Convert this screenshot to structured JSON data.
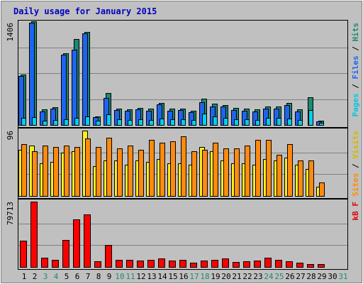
{
  "title": "Daily usage for January 2015",
  "chart_data": [
    {
      "type": "bar",
      "ylabel_parts": [
        {
          "text": "Pages",
          "color": "#00c8e0"
        },
        {
          "text": " / ",
          "color": "#000000"
        },
        {
          "text": "Files",
          "color": "#1e64f0"
        },
        {
          "text": " / ",
          "color": "#000000"
        },
        {
          "text": "Hits",
          "color": "#1e8a70"
        }
      ],
      "y_max_label": "1406",
      "ylim": [
        0,
        1406
      ],
      "colors": {
        "hits": "#1e8a70",
        "files": "#1e64f0",
        "pages": "#00d0ee"
      },
      "series": [
        {
          "name": "Hits",
          "key": "hits",
          "values": [
            680,
            1406,
            210,
            240,
            970,
            1170,
            1260,
            120,
            430,
            220,
            210,
            230,
            220,
            300,
            220,
            220,
            190,
            360,
            290,
            270,
            230,
            220,
            210,
            250,
            250,
            300,
            210,
            380,
            60,
            0,
            0
          ]
        },
        {
          "name": "Files",
          "key": "files",
          "values": [
            660,
            1390,
            180,
            220,
            950,
            1020,
            1240,
            110,
            370,
            200,
            190,
            210,
            190,
            280,
            190,
            200,
            170,
            310,
            250,
            250,
            200,
            190,
            180,
            220,
            220,
            270,
            180,
            0,
            50,
            0,
            0
          ]
        },
        {
          "name": "Pages",
          "key": "pages",
          "values": [
            100,
            110,
            60,
            70,
            80,
            100,
            120,
            60,
            140,
            80,
            70,
            80,
            70,
            90,
            80,
            80,
            70,
            150,
            120,
            100,
            80,
            80,
            70,
            100,
            100,
            90,
            70,
            200,
            30,
            0,
            0
          ]
        }
      ]
    },
    {
      "type": "bar",
      "ylabel_parts": [
        {
          "text": "Sites",
          "color": "#ff8c00"
        },
        {
          "text": " / ",
          "color": "#000000"
        },
        {
          "text": "Visits",
          "color": "#d4b800"
        }
      ],
      "y_max_label": "96",
      "ylim": [
        0,
        96
      ],
      "colors": {
        "visits": "#ffee20",
        "sites": "#ff8a10"
      },
      "series": [
        {
          "name": "Visits",
          "key": "visits",
          "values": [
            68,
            74,
            48,
            50,
            64,
            66,
            96,
            44,
            52,
            52,
            46,
            52,
            50,
            54,
            48,
            48,
            46,
            72,
            66,
            52,
            48,
            48,
            46,
            54,
            52,
            56,
            46,
            40,
            14,
            0,
            0
          ]
        },
        {
          "name": "Sites",
          "key": "sites",
          "values": [
            76,
            66,
            74,
            72,
            74,
            72,
            84,
            72,
            86,
            70,
            74,
            68,
            82,
            78,
            80,
            88,
            66,
            68,
            78,
            70,
            70,
            74,
            82,
            82,
            60,
            76,
            52,
            52,
            20,
            0,
            0
          ]
        }
      ]
    },
    {
      "type": "bar",
      "ylabel_parts": [
        {
          "text": "kB F",
          "color": "#e00000"
        }
      ],
      "y_max_label": "79713",
      "ylim": [
        0,
        79713
      ],
      "colors": {
        "kbf": "#ff0000"
      },
      "series": [
        {
          "name": "kB F",
          "key": "kbf",
          "values": [
            32000,
            79713,
            11000,
            8500,
            33000,
            58000,
            64000,
            7000,
            27000,
            9000,
            8500,
            8000,
            8500,
            10000,
            8000,
            9000,
            5500,
            8000,
            8500,
            10500,
            6000,
            7000,
            7500,
            11500,
            9000,
            6500,
            5000,
            3500,
            3200,
            0,
            0
          ]
        }
      ]
    }
  ],
  "x_days": [
    "1",
    "2",
    "3",
    "4",
    "5",
    "6",
    "7",
    "8",
    "9",
    "10",
    "11",
    "12",
    "13",
    "14",
    "15",
    "16",
    "17",
    "18",
    "19",
    "20",
    "21",
    "22",
    "23",
    "24",
    "25",
    "26",
    "27",
    "28",
    "29",
    "30",
    "31"
  ],
  "weekend_days": [
    "3",
    "4",
    "10",
    "11",
    "17",
    "18",
    "24",
    "25",
    "31"
  ],
  "weekday_color": "#000000",
  "weekend_color": "#1e8a70"
}
